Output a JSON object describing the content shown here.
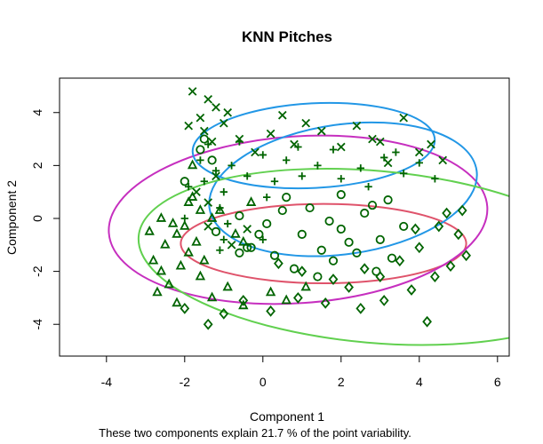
{
  "chart_data": {
    "type": "scatter",
    "title": "KNN Pitches",
    "xlabel": "Component 1",
    "ylabel": "Component 2",
    "subtitle": "These two components explain 21.7 % of the point variability.",
    "xlim": [
      -5.2,
      6.3
    ],
    "ylim": [
      -5.2,
      5.3
    ],
    "xticks": [
      -4,
      -2,
      0,
      2,
      4,
      6
    ],
    "yticks": [
      -4,
      -2,
      0,
      2,
      4
    ],
    "grid": false,
    "point_color": "#006400",
    "clusters": [
      {
        "id": 1,
        "marker": "circle",
        "ellipse_color": "#DF536B",
        "ellipse": {
          "cx": 1.55,
          "cy": -0.95,
          "rx": 3.65,
          "ry": 1.5,
          "angle": 0
        },
        "points": [
          [
            0.1,
            -0.2
          ],
          [
            0.5,
            0.3
          ],
          [
            1.0,
            -0.6
          ],
          [
            1.5,
            -1.2
          ],
          [
            2.0,
            -0.4
          ],
          [
            2.6,
            0.2
          ],
          [
            3.0,
            -0.8
          ],
          [
            -0.4,
            -1.1
          ],
          [
            0.8,
            -1.9
          ],
          [
            1.8,
            -1.6
          ],
          [
            2.4,
            -1.3
          ],
          [
            3.3,
            -1.5
          ],
          [
            1.2,
            0.4
          ],
          [
            2.8,
            0.5
          ],
          [
            0.3,
            -1.4
          ],
          [
            1.7,
            -0.1
          ],
          [
            2.2,
            -0.9
          ],
          [
            -0.1,
            -0.6
          ],
          [
            3.6,
            -0.3
          ],
          [
            1.4,
            -2.2
          ],
          [
            2.9,
            -2.0
          ],
          [
            0.6,
            0.8
          ],
          [
            2.0,
            0.9
          ],
          [
            3.2,
            0.7
          ],
          [
            -0.6,
            0.1
          ]
        ]
      },
      {
        "id": 2,
        "marker": "triangle",
        "ellipse_color": "#C62FBF",
        "ellipse": {
          "cx": 0.9,
          "cy": -0.05,
          "rx": 4.85,
          "ry": 3.15,
          "angle": 4
        },
        "points": [
          [
            -2.5,
            -1.0
          ],
          [
            -2.8,
            -1.6
          ],
          [
            -2.2,
            -0.6
          ],
          [
            -1.9,
            -1.3
          ],
          [
            -2.6,
            -2.0
          ],
          [
            -2.3,
            -0.2
          ],
          [
            -1.7,
            -0.9
          ],
          [
            -2.9,
            -0.5
          ],
          [
            -2.1,
            -1.8
          ],
          [
            -1.5,
            -1.6
          ],
          [
            -2.4,
            -2.5
          ],
          [
            -1.3,
            -3.0
          ],
          [
            -0.9,
            -2.6
          ],
          [
            0.2,
            -2.8
          ],
          [
            0.6,
            -3.1
          ],
          [
            -0.5,
            -3.3
          ],
          [
            -2.7,
            -2.8
          ],
          [
            -1.1,
            0.3
          ],
          [
            -1.8,
            0.8
          ],
          [
            -2.0,
            -0.3
          ],
          [
            -0.3,
            0.6
          ],
          [
            -2.6,
            0.0
          ],
          [
            1.1,
            -2.6
          ],
          [
            -1.6,
            -2.2
          ],
          [
            -2.2,
            -3.2
          ]
        ]
      },
      {
        "id": 3,
        "marker": "plus",
        "ellipse_color": "#2297E6",
        "ellipse": {
          "cx": 2.05,
          "cy": 1.1,
          "rx": 3.45,
          "ry": 2.45,
          "angle": 8
        },
        "points": [
          [
            -1.6,
            2.2
          ],
          [
            -1.2,
            1.8
          ],
          [
            -0.8,
            2.0
          ],
          [
            -0.4,
            1.6
          ],
          [
            0.0,
            2.4
          ],
          [
            0.6,
            2.2
          ],
          [
            1.0,
            1.6
          ],
          [
            1.4,
            2.0
          ],
          [
            2.0,
            1.5
          ],
          [
            2.5,
            1.9
          ],
          [
            3.1,
            2.3
          ],
          [
            3.6,
            1.7
          ],
          [
            4.0,
            2.1
          ],
          [
            -1.9,
            1.2
          ],
          [
            -1.4,
            2.8
          ],
          [
            -0.6,
            2.9
          ],
          [
            0.3,
            1.4
          ],
          [
            0.9,
            2.7
          ],
          [
            1.8,
            2.6
          ],
          [
            2.7,
            1.2
          ],
          [
            3.4,
            2.5
          ],
          [
            4.4,
            1.5
          ],
          [
            -2.0,
            0.0
          ],
          [
            -1.0,
            1.0
          ],
          [
            0.1,
            0.8
          ]
        ]
      },
      {
        "id": 4,
        "marker": "x",
        "ellipse_color": "#2297E6",
        "ellipse": {
          "cx": 1.3,
          "cy": 2.75,
          "rx": 3.1,
          "ry": 1.6,
          "angle": 3
        },
        "points": [
          [
            -1.8,
            4.8
          ],
          [
            -1.6,
            3.8
          ],
          [
            -1.2,
            4.2
          ],
          [
            -1.5,
            3.3
          ],
          [
            -1.0,
            3.6
          ],
          [
            -0.6,
            3.0
          ],
          [
            -1.3,
            2.9
          ],
          [
            0.2,
            3.2
          ],
          [
            0.8,
            2.8
          ],
          [
            1.5,
            3.3
          ],
          [
            2.0,
            2.7
          ],
          [
            2.8,
            3.0
          ],
          [
            3.6,
            3.8
          ],
          [
            4.0,
            2.5
          ],
          [
            4.6,
            2.2
          ],
          [
            3.2,
            2.1
          ],
          [
            -0.2,
            2.5
          ],
          [
            1.1,
            3.6
          ],
          [
            2.4,
            3.5
          ],
          [
            -1.9,
            3.5
          ],
          [
            -1.4,
            4.5
          ],
          [
            0.5,
            3.9
          ],
          [
            3.0,
            2.9
          ],
          [
            4.3,
            2.8
          ],
          [
            -0.9,
            4.0
          ]
        ]
      },
      {
        "id": 5,
        "marker": "diamond",
        "ellipse_color": "#61D04F",
        "ellipse": {
          "cx": 2.85,
          "cy": -1.45,
          "rx": 6.05,
          "ry": 3.25,
          "angle": -5
        },
        "points": [
          [
            -2.0,
            -3.4
          ],
          [
            -1.4,
            -4.0
          ],
          [
            -0.5,
            -3.1
          ],
          [
            0.2,
            -3.5
          ],
          [
            0.9,
            -3.0
          ],
          [
            1.6,
            -3.2
          ],
          [
            2.2,
            -2.6
          ],
          [
            3.0,
            -2.2
          ],
          [
            3.8,
            -2.7
          ],
          [
            4.2,
            -3.9
          ],
          [
            4.8,
            -1.8
          ],
          [
            5.2,
            -1.4
          ],
          [
            5.0,
            -0.6
          ],
          [
            4.5,
            -0.3
          ],
          [
            4.0,
            -1.1
          ],
          [
            3.5,
            -1.6
          ],
          [
            2.6,
            -1.9
          ],
          [
            1.8,
            -2.3
          ],
          [
            1.0,
            -2.0
          ],
          [
            0.4,
            -1.7
          ],
          [
            4.7,
            0.2
          ],
          [
            5.1,
            0.3
          ],
          [
            3.1,
            -3.1
          ],
          [
            2.5,
            -3.4
          ],
          [
            -1.0,
            -3.6
          ],
          [
            4.4,
            -2.2
          ],
          [
            3.9,
            -0.4
          ]
        ]
      }
    ],
    "dense_cluster_points": [
      [
        -1.6,
        2.6
      ],
      [
        -1.5,
        1.4
      ],
      [
        -1.4,
        0.6
      ],
      [
        -1.3,
        0.0
      ],
      [
        -1.2,
        -0.5
      ],
      [
        -1.0,
        -0.8
      ],
      [
        -0.8,
        -1.0
      ],
      [
        -0.7,
        -0.6
      ],
      [
        -0.6,
        -1.3
      ],
      [
        -0.9,
        -0.2
      ],
      [
        -1.7,
        1.0
      ],
      [
        -1.8,
        2.0
      ],
      [
        -1.5,
        3.0
      ],
      [
        -1.1,
        0.4
      ],
      [
        -1.2,
        1.6
      ],
      [
        -0.5,
        -0.9
      ],
      [
        -0.3,
        -1.1
      ],
      [
        0.0,
        -0.8
      ],
      [
        -1.4,
        -0.3
      ],
      [
        -1.6,
        0.3
      ],
      [
        -1.3,
        2.2
      ],
      [
        -1.1,
        -1.2
      ],
      [
        -0.4,
        -0.4
      ],
      [
        -1.9,
        0.6
      ],
      [
        -2.0,
        1.4
      ]
    ]
  }
}
